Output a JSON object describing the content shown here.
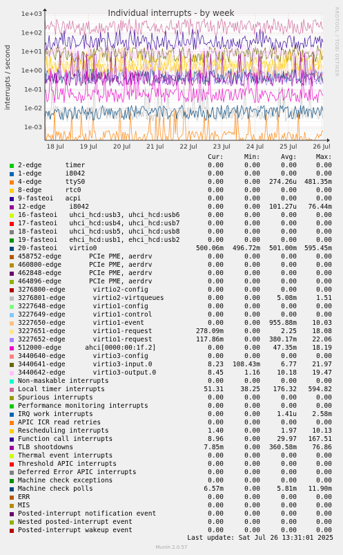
{
  "chart_data": {
    "type": "line",
    "title": "Individual interrupts - by week",
    "ylabel": "interrupts / second",
    "yscale": "log",
    "ylim": [
      0.0002,
      1000
    ],
    "yticks": [
      "1e-03",
      "1e-02",
      "1e-01",
      "1e+00",
      "1e+01",
      "1e+02",
      "1e+03"
    ],
    "xticks": [
      "18 Jul",
      "19 Jul",
      "20 Jul",
      "21 Jul",
      "22 Jul",
      "23 Jul",
      "24 Jul",
      "25 Jul",
      "26 Jul"
    ],
    "grid": true,
    "legend_placement": "bottom",
    "columns": [
      "Cur:",
      "Min:",
      "Avg:",
      "Max:"
    ],
    "series": [
      {
        "name": "2-edge      timer",
        "color": "#00cc00",
        "cur": "0.00",
        "min": "0.00",
        "avg": "0.00",
        "max": "0.00"
      },
      {
        "name": "1-edge      i8042",
        "color": "#0066b3",
        "cur": "0.00",
        "min": "0.00",
        "avg": "0.00",
        "max": "0.00"
      },
      {
        "name": "4-edge      ttyS0",
        "color": "#ff8000",
        "cur": "0.00",
        "min": "0.00",
        "avg": "274.26u",
        "max": "481.35m"
      },
      {
        "name": "8-edge      rtc0",
        "color": "#ffcc00",
        "cur": "0.00",
        "min": "0.00",
        "avg": "0.00",
        "max": "0.00"
      },
      {
        "name": "9-fasteoi   acpi",
        "color": "#330099",
        "cur": "0.00",
        "min": "0.00",
        "avg": "0.00",
        "max": "0.00"
      },
      {
        "name": "12-edge      i8042",
        "color": "#990099",
        "cur": "0.00",
        "min": "0.00",
        "avg": "101.27u",
        "max": "76.44m"
      },
      {
        "name": "16-fasteoi   uhci_hcd:usb3, uhci_hcd:usb6",
        "color": "#ccff00",
        "cur": "0.00",
        "min": "0.00",
        "avg": "0.00",
        "max": "0.00"
      },
      {
        "name": "17-fasteoi   uhci_hcd:usb4, uhci_hcd:usb7",
        "color": "#ff0000",
        "cur": "0.00",
        "min": "0.00",
        "avg": "0.00",
        "max": "0.00"
      },
      {
        "name": "18-fasteoi   uhci_hcd:usb5, uhci_hcd:usb8",
        "color": "#808080",
        "cur": "0.00",
        "min": "0.00",
        "avg": "0.00",
        "max": "0.00"
      },
      {
        "name": "19-fasteoi   ehci_hcd:usb1, ehci_hcd:usb2",
        "color": "#008f00",
        "cur": "0.00",
        "min": "0.00",
        "avg": "0.00",
        "max": "0.00"
      },
      {
        "name": "20-fasteoi   virtio0",
        "color": "#00487d",
        "cur": "500.06m",
        "min": "496.72m",
        "avg": "501.00m",
        "max": "595.45m"
      },
      {
        "name": "458752-edge       PCIe PME, aerdrv",
        "color": "#b35a00",
        "cur": "0.00",
        "min": "0.00",
        "avg": "0.00",
        "max": "0.00"
      },
      {
        "name": "460800-edge       PCIe PME, aerdrv",
        "color": "#b38f00",
        "cur": "0.00",
        "min": "0.00",
        "avg": "0.00",
        "max": "0.00"
      },
      {
        "name": "462848-edge       PCIe PME, aerdrv",
        "color": "#6b006b",
        "cur": "0.00",
        "min": "0.00",
        "avg": "0.00",
        "max": "0.00"
      },
      {
        "name": "464896-edge       PCIe PME, aerdrv",
        "color": "#8fb300",
        "cur": "0.00",
        "min": "0.00",
        "avg": "0.00",
        "max": "0.00"
      },
      {
        "name": "3276800-edge       virtio2-config",
        "color": "#b30000",
        "cur": "0.00",
        "min": "0.00",
        "avg": "0.00",
        "max": "0.00"
      },
      {
        "name": "3276801-edge       virtio2-virtqueues",
        "color": "#bebebe",
        "cur": "0.00",
        "min": "0.00",
        "avg": "5.08m",
        "max": "1.51"
      },
      {
        "name": "3227648-edge       virtio1-config",
        "color": "#80ff80",
        "cur": "0.00",
        "min": "0.00",
        "avg": "0.00",
        "max": "0.00"
      },
      {
        "name": "3227649-edge       virtio1-control",
        "color": "#80c9ff",
        "cur": "0.00",
        "min": "0.00",
        "avg": "0.00",
        "max": "0.00"
      },
      {
        "name": "3227650-edge       virtio1-event",
        "color": "#ffc080",
        "cur": "0.00",
        "min": "0.00",
        "avg": "955.88m",
        "max": "10.03"
      },
      {
        "name": "3227651-edge       virtio1-request",
        "color": "#ffe680",
        "cur": "278.09m",
        "min": "0.00",
        "avg": "2.25",
        "max": "18.08"
      },
      {
        "name": "3227652-edge       virtio1-request",
        "color": "#aa80ff",
        "cur": "117.86m",
        "min": "0.00",
        "avg": "380.17m",
        "max": "22.06"
      },
      {
        "name": "512000-edge      ahci[0000:00:1f.2]",
        "color": "#ee00cc",
        "cur": "0.00",
        "min": "0.00",
        "avg": "47.35m",
        "max": "18.19"
      },
      {
        "name": "3440640-edge       virtio3-config",
        "color": "#ff8080",
        "cur": "0.00",
        "min": "0.00",
        "avg": "0.00",
        "max": "0.00"
      },
      {
        "name": "3440641-edge       virtio3-input.0",
        "color": "#666600",
        "cur": "8.23",
        "min": "108.43m",
        "avg": "6.77",
        "max": "21.97"
      },
      {
        "name": "3440642-edge       virtio3-output.0",
        "color": "#ffbfff",
        "cur": "8.45",
        "min": "1.16",
        "avg": "10.18",
        "max": "19.47"
      },
      {
        "name": "Non-maskable interrupts",
        "color": "#00ffcc",
        "cur": "0.00",
        "min": "0.00",
        "avg": "0.00",
        "max": "0.00"
      },
      {
        "name": "Local timer interrupts",
        "color": "#cc6699",
        "cur": "51.31",
        "min": "38.25",
        "avg": "176.32",
        "max": "594.82"
      },
      {
        "name": "Spurious interrupts",
        "color": "#999900",
        "cur": "0.00",
        "min": "0.00",
        "avg": "0.00",
        "max": "0.00"
      },
      {
        "name": "Performance monitoring interrupts",
        "color": "#00cc00",
        "cur": "0.00",
        "min": "0.00",
        "avg": "0.00",
        "max": "0.00"
      },
      {
        "name": "IRQ work interrupts",
        "color": "#0066b3",
        "cur": "0.00",
        "min": "0.00",
        "avg": "1.41u",
        "max": "2.58m"
      },
      {
        "name": "APIC ICR read retries",
        "color": "#ff8000",
        "cur": "0.00",
        "min": "0.00",
        "avg": "0.00",
        "max": "0.00"
      },
      {
        "name": "Rescheduling interrupts",
        "color": "#ffcc00",
        "cur": "1.40",
        "min": "0.00",
        "avg": "1.97",
        "max": "10.13"
      },
      {
        "name": "Function call interrupts",
        "color": "#330099",
        "cur": "8.96",
        "min": "0.00",
        "avg": "29.97",
        "max": "167.51"
      },
      {
        "name": "TLB shootdowns",
        "color": "#990099",
        "cur": "7.85m",
        "min": "0.00",
        "avg": "360.58m",
        "max": "76.86"
      },
      {
        "name": "Thermal event interrupts",
        "color": "#ccff00",
        "cur": "0.00",
        "min": "0.00",
        "avg": "0.00",
        "max": "0.00"
      },
      {
        "name": "Threshold APIC interrupts",
        "color": "#ff0000",
        "cur": "0.00",
        "min": "0.00",
        "avg": "0.00",
        "max": "0.00"
      },
      {
        "name": "Deferred Error APIC interrupts",
        "color": "#808080",
        "cur": "0.00",
        "min": "0.00",
        "avg": "0.00",
        "max": "0.00"
      },
      {
        "name": "Machine check exceptions",
        "color": "#008f00",
        "cur": "0.00",
        "min": "0.00",
        "avg": "0.00",
        "max": "0.00"
      },
      {
        "name": "Machine check polls",
        "color": "#00487d",
        "cur": "6.57m",
        "min": "0.00",
        "avg": "5.81m",
        "max": "11.90m"
      },
      {
        "name": "ERR",
        "color": "#b35a00",
        "cur": "0.00",
        "min": "0.00",
        "avg": "0.00",
        "max": "0.00"
      },
      {
        "name": "MIS",
        "color": "#b38f00",
        "cur": "0.00",
        "min": "0.00",
        "avg": "0.00",
        "max": "0.00"
      },
      {
        "name": "Posted-interrupt notification event",
        "color": "#6b006b",
        "cur": "0.00",
        "min": "0.00",
        "avg": "0.00",
        "max": "0.00"
      },
      {
        "name": "Nested posted-interrupt event",
        "color": "#8fb300",
        "cur": "0.00",
        "min": "0.00",
        "avg": "0.00",
        "max": "0.00"
      },
      {
        "name": "Posted-interrupt wakeup event",
        "color": "#b30000",
        "cur": "0.00",
        "min": "0.00",
        "avg": "0.00",
        "max": "0.00"
      }
    ]
  },
  "footer": {
    "last_update": "Last update: Sat Jul 26 13:31:01 2025",
    "version": "Munin 2.0.57",
    "side_text": "RRDTOOL / TOBI OETIKER"
  },
  "colors": {
    "background": "#f0f0f0",
    "plot": "#ffffff",
    "grid": "#e6c8c8",
    "minor_grid": "#ececec"
  }
}
